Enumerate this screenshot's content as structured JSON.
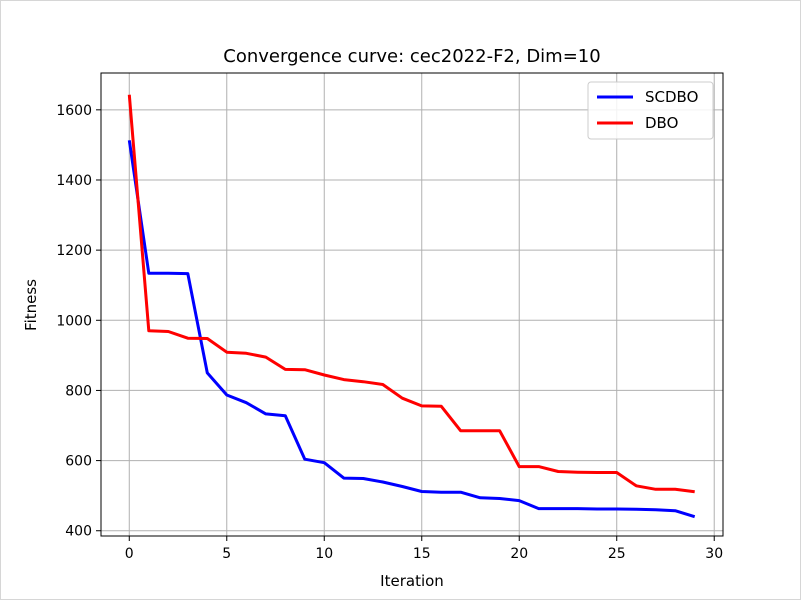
{
  "chart_data": {
    "type": "line",
    "title": "Convergence curve:  cec2022-F2, Dim=10",
    "xlabel": "Iteration",
    "ylabel": "Fitness",
    "xlim": [
      -1.45,
      30.45
    ],
    "ylim": [
      385,
      1705
    ],
    "xticks": [
      0,
      5,
      10,
      15,
      20,
      25,
      30
    ],
    "yticks": [
      400,
      600,
      800,
      1000,
      1200,
      1400,
      1600
    ],
    "grid": true,
    "legend_position": "top-right",
    "x": [
      0,
      1,
      2,
      3,
      4,
      5,
      6,
      7,
      8,
      9,
      10,
      11,
      12,
      13,
      14,
      15,
      16,
      17,
      18,
      19,
      20,
      21,
      22,
      23,
      24,
      25,
      26,
      27,
      28,
      29
    ],
    "series": [
      {
        "name": "SCDBO",
        "color": "#0000ff",
        "values": [
          1513,
          1134,
          1134,
          1133,
          850,
          787,
          765,
          733,
          728,
          604,
          594,
          550,
          549,
          539,
          526,
          512,
          510,
          510,
          494,
          492,
          486,
          463,
          463,
          463,
          462,
          462,
          461,
          460,
          457,
          440
        ]
      },
      {
        "name": "DBO",
        "color": "#ff0000",
        "values": [
          1643,
          970,
          968,
          949,
          948,
          909,
          906,
          895,
          860,
          859,
          844,
          831,
          825,
          817,
          778,
          756,
          755,
          685,
          685,
          685,
          583,
          583,
          569,
          567,
          566,
          566,
          528,
          518,
          518,
          511
        ]
      }
    ]
  }
}
